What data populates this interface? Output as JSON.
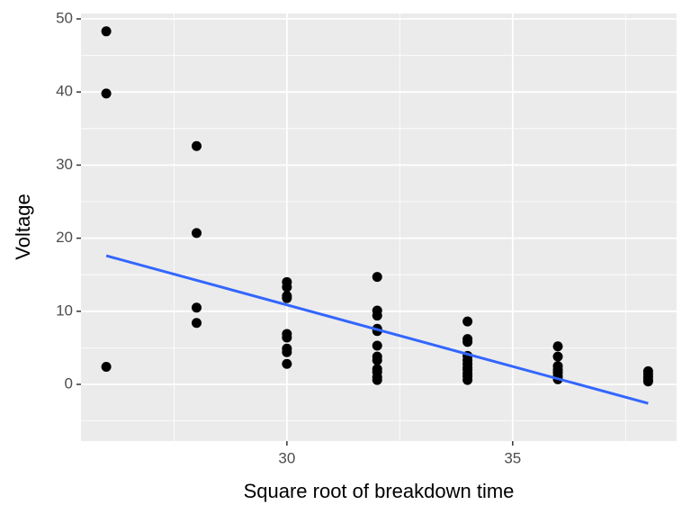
{
  "chart_data": {
    "type": "scatter",
    "xlabel": "Square root of breakdown time",
    "ylabel": "Voltage",
    "xlim": [
      25.44,
      38.63
    ],
    "ylim": [
      -7.76,
      50.74
    ],
    "xticks": [
      30,
      35
    ],
    "yticks": [
      0,
      10,
      20,
      30,
      40,
      50
    ],
    "xminor": [
      27.5,
      32.5,
      37.5
    ],
    "yminor": [
      -5,
      5,
      15,
      25,
      35,
      45
    ],
    "grid": true,
    "points": {
      "color": "#000000",
      "x": [
        26,
        26,
        26,
        28,
        28,
        28,
        28,
        30,
        30,
        30,
        30,
        30,
        30,
        30,
        30,
        30,
        32,
        32,
        32,
        32,
        32,
        32,
        32,
        32,
        32,
        32,
        32,
        32,
        34,
        34,
        34,
        34,
        34,
        34,
        34,
        34,
        34,
        34,
        34,
        36,
        36,
        36,
        36,
        36,
        36,
        36,
        38,
        38,
        38,
        38,
        38
      ],
      "y": [
        48.3,
        39.8,
        2.4,
        32.6,
        20.7,
        10.5,
        8.4,
        14.0,
        13.3,
        12.1,
        11.8,
        6.9,
        6.4,
        4.9,
        4.4,
        2.8,
        14.7,
        10.1,
        9.4,
        7.6,
        7.3,
        5.3,
        3.8,
        3.3,
        2.1,
        1.7,
        1.0,
        0.6,
        8.6,
        6.2,
        5.8,
        3.9,
        3.3,
        2.8,
        2.3,
        2.0,
        1.5,
        1.1,
        0.6,
        5.2,
        3.8,
        2.5,
        2.0,
        1.6,
        1.1,
        0.7,
        1.8,
        1.4,
        1.0,
        0.6,
        0.4
      ]
    },
    "fit": {
      "color": "#3366ff",
      "x": [
        26,
        38
      ],
      "y": [
        17.6,
        -2.6
      ]
    }
  }
}
